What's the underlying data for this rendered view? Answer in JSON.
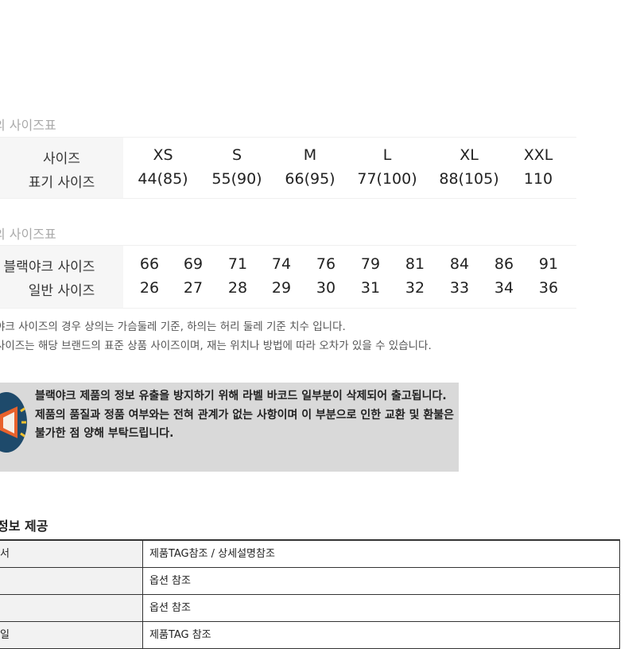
{
  "size_table_1": {
    "title": "의 사이즈표",
    "row_labels": [
      "사이즈",
      "표기 사이즈"
    ],
    "sizes": [
      "XS",
      "S",
      "M",
      "L",
      "XL",
      "XXL"
    ],
    "marked": [
      "44(85)",
      "55(90)",
      "66(95)",
      "77(100)",
      "88(105)",
      "110"
    ]
  },
  "size_table_2": {
    "title": "의 사이즈표",
    "row_labels": [
      "블랙야크 사이즈",
      "일반 사이즈"
    ],
    "blackyak": [
      "66",
      "69",
      "71",
      "74",
      "76",
      "79",
      "81",
      "84",
      "86",
      "91"
    ],
    "general": [
      "26",
      "27",
      "28",
      "29",
      "30",
      "31",
      "32",
      "33",
      "34",
      "36"
    ]
  },
  "notes": [
    "야크 사이즈의 경우 상의는 가슴둘레 기준, 하의는 허리 둘레 기준 치수 입니다.",
    "사이즈는 해당 브랜드의 표준 상품 사이즈이며, 재는 위치나 방법에 따라 오차가 있을 수 있습니다."
  ],
  "notice": {
    "icon": "megaphone-icon",
    "lines": [
      "블랙야크 제품의 정보 유출을 방지하기 위해 라벨 바코드 일부분이 삭제되어 출고됩니다.",
      "제품의 품질과 정품 여부와는 전혀 관계가 없는 사항이며 이 부분으로 인한 교환 및 환불은 불가한 점 양해 부탁드립니다."
    ]
  },
  "info": {
    "title": "정보 제공",
    "rows": [
      {
        "k": "서",
        "v": "제품TAG참조 / 상세설명참조"
      },
      {
        "k": "",
        "v": "옵션 참조"
      },
      {
        "k": "",
        "v": "옵션 참조"
      },
      {
        "k": "일",
        "v": "제품TAG 참조"
      }
    ]
  }
}
